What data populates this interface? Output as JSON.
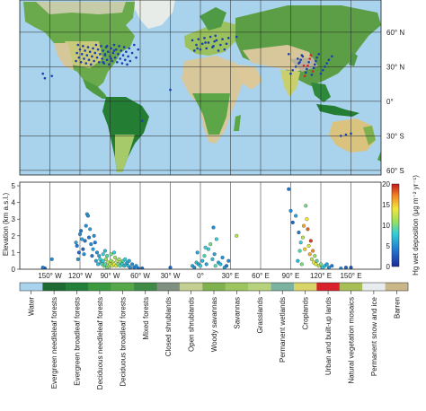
{
  "map": {
    "lat_labels": [
      "60° N",
      "30° N",
      "0°",
      "30° S",
      "60° S"
    ],
    "lat_values": [
      60,
      30,
      0,
      -30,
      -60
    ],
    "colors": {
      "ocean": "#a9d3ec",
      "forest": "#2f8a3a",
      "grass": "#a6c96a",
      "desert": "#d8c79a",
      "snow": "#eeeeee",
      "site": "#1a3fb0"
    }
  },
  "chart_data": {
    "type": "scatter",
    "ylabel": "Elevation (km a.s.l.)",
    "ylim": [
      0,
      5
    ],
    "y_ticks": [
      "0",
      "1",
      "2",
      "3",
      "4",
      "5"
    ],
    "x_ticks": [
      "150° W",
      "120° W",
      "90° W",
      "60° W",
      "30° W",
      "0°",
      "30° E",
      "60° E",
      "90° E",
      "120° E",
      "150° E"
    ],
    "x_tick_values": [
      -150,
      -120,
      -90,
      -60,
      -30,
      0,
      30,
      60,
      90,
      120,
      150
    ],
    "xlim": [
      -180,
      180
    ],
    "colorbar": {
      "label": "Hg wet deposition (μg m⁻² yr⁻¹)",
      "ticks": [
        "0",
        "5",
        "10",
        "15",
        "20"
      ],
      "range": [
        0,
        20
      ]
    },
    "points": [
      [
        -155,
        0.05,
        3
      ],
      [
        -148,
        0.6,
        5
      ],
      [
        -157,
        0.1,
        4
      ],
      [
        -124,
        1.6,
        6
      ],
      [
        -123,
        1.4,
        4
      ],
      [
        -122,
        0.6,
        5
      ],
      [
        -121,
        1.0,
        3
      ],
      [
        -120,
        2.1,
        5
      ],
      [
        -119,
        2.3,
        4
      ],
      [
        -118,
        1.8,
        6
      ],
      [
        -117,
        1.2,
        3
      ],
      [
        -116,
        0.9,
        5
      ],
      [
        -115,
        1.7,
        4
      ],
      [
        -114,
        2.6,
        5
      ],
      [
        -113,
        3.3,
        6
      ],
      [
        -112,
        3.2,
        5
      ],
      [
        -111,
        1.9,
        4
      ],
      [
        -110,
        2.4,
        6
      ],
      [
        -109,
        1.5,
        5
      ],
      [
        -108,
        0.8,
        4
      ],
      [
        -107,
        1.2,
        6
      ],
      [
        -106,
        2.0,
        5
      ],
      [
        -105,
        1.6,
        4
      ],
      [
        -104,
        0.5,
        6
      ],
      [
        -103,
        1.0,
        5
      ],
      [
        -102,
        0.3,
        7
      ],
      [
        -101,
        0.8,
        6
      ],
      [
        -100,
        0.6,
        8
      ],
      [
        -99,
        0.4,
        7
      ],
      [
        -98,
        0.3,
        9
      ],
      [
        -97,
        0.5,
        8
      ],
      [
        -96,
        0.2,
        10
      ],
      [
        -95,
        0.3,
        9
      ],
      [
        -94,
        0.6,
        11
      ],
      [
        -93,
        0.1,
        10
      ],
      [
        -92,
        0.4,
        12
      ],
      [
        -91,
        0.2,
        11
      ],
      [
        -90,
        0.3,
        12
      ],
      [
        -89,
        0.5,
        11
      ],
      [
        -88,
        0.2,
        13
      ],
      [
        -87,
        0.4,
        12
      ],
      [
        -86,
        0.3,
        14
      ],
      [
        -85,
        0.7,
        11
      ],
      [
        -84,
        0.2,
        13
      ],
      [
        -83,
        0.5,
        12
      ],
      [
        -82,
        0.3,
        10
      ],
      [
        -81,
        0.6,
        11
      ],
      [
        -80,
        0.2,
        9
      ],
      [
        -79,
        0.4,
        10
      ],
      [
        -78,
        0.3,
        8
      ],
      [
        -77,
        0.5,
        9
      ],
      [
        -76,
        0.2,
        7
      ],
      [
        -75,
        0.6,
        8
      ],
      [
        -74,
        0.3,
        7
      ],
      [
        -73,
        0.4,
        6
      ],
      [
        -72,
        0.2,
        7
      ],
      [
        -71,
        0.5,
        6
      ],
      [
        -70,
        0.1,
        5
      ],
      [
        -68,
        0.3,
        5
      ],
      [
        -66,
        0.1,
        4
      ],
      [
        -64,
        0.2,
        5
      ],
      [
        -62,
        0.05,
        4
      ],
      [
        -97,
        0.9,
        8
      ],
      [
        -95,
        1.1,
        7
      ],
      [
        -93,
        0.8,
        9
      ],
      [
        -89,
        0.9,
        10
      ],
      [
        -86,
        1.0,
        8
      ],
      [
        -58,
        0.05,
        3
      ],
      [
        -30,
        0.1,
        3
      ],
      [
        -8,
        0.2,
        6
      ],
      [
        -6,
        0.1,
        5
      ],
      [
        -4,
        0.4,
        7
      ],
      [
        -2,
        0.3,
        6
      ],
      [
        0,
        0.2,
        8
      ],
      [
        2,
        0.5,
        7
      ],
      [
        4,
        0.8,
        9
      ],
      [
        6,
        0.3,
        6
      ],
      [
        8,
        1.2,
        8
      ],
      [
        10,
        1.5,
        10
      ],
      [
        12,
        0.6,
        7
      ],
      [
        14,
        0.9,
        6
      ],
      [
        15,
        0.2,
        9
      ],
      [
        13,
        2.5,
        5
      ],
      [
        16,
        1.8,
        8
      ],
      [
        18,
        0.4,
        6
      ],
      [
        20,
        0.3,
        7
      ],
      [
        22,
        0.7,
        5
      ],
      [
        24,
        0.1,
        6
      ],
      [
        26,
        0.2,
        4
      ],
      [
        28,
        0.5,
        5
      ],
      [
        -3,
        1.0,
        6
      ],
      [
        5,
        1.3,
        8
      ],
      [
        36,
        2.0,
        12
      ],
      [
        88,
        4.8,
        4
      ],
      [
        90,
        3.5,
        5
      ],
      [
        92,
        2.8,
        3
      ],
      [
        95,
        3.2,
        6
      ],
      [
        98,
        2.2,
        4
      ],
      [
        100,
        1.6,
        8
      ],
      [
        102,
        1.9,
        12
      ],
      [
        104,
        1.2,
        15
      ],
      [
        105,
        3.8,
        10
      ],
      [
        106,
        3.0,
        14
      ],
      [
        107,
        2.4,
        18
      ],
      [
        108,
        1.4,
        13
      ],
      [
        109,
        0.9,
        16
      ],
      [
        110,
        1.7,
        19
      ],
      [
        111,
        0.6,
        12
      ],
      [
        112,
        1.1,
        17
      ],
      [
        113,
        0.4,
        14
      ],
      [
        114,
        0.8,
        11
      ],
      [
        115,
        0.3,
        13
      ],
      [
        116,
        0.5,
        9
      ],
      [
        118,
        0.2,
        12
      ],
      [
        120,
        0.3,
        10
      ],
      [
        122,
        0.1,
        8
      ],
      [
        124,
        0.2,
        7
      ],
      [
        126,
        0.3,
        6
      ],
      [
        128,
        0.1,
        5
      ],
      [
        131,
        0.2,
        4
      ],
      [
        140,
        0.05,
        5
      ],
      [
        145,
        0.1,
        3
      ],
      [
        150,
        0.1,
        2
      ],
      [
        103,
        2.6,
        16
      ],
      [
        99,
        1.1,
        9
      ],
      [
        97,
        0.5,
        7
      ],
      [
        101,
        0.3,
        10
      ]
    ]
  },
  "legend": {
    "items": [
      {
        "label": "Water",
        "color": "#a9d3ec"
      },
      {
        "label": "Evergreen needleleaf forests",
        "color": "#1d6b33"
      },
      {
        "label": "Evergreen broadleaf forests",
        "color": "#23803a"
      },
      {
        "label": "Deciduous needleleaf forests",
        "color": "#3b9a3f"
      },
      {
        "label": "Deciduous broadleaf forests",
        "color": "#55a84a"
      },
      {
        "label": "Mixed forests",
        "color": "#3e8a46"
      },
      {
        "label": "Closed shrublands",
        "color": "#7f8f80"
      },
      {
        "label": "Open shrublands",
        "color": "#c4cf92"
      },
      {
        "label": "Woody savannas",
        "color": "#7fb24e"
      },
      {
        "label": "Savannas",
        "color": "#9cc55f"
      },
      {
        "label": "Grasslands",
        "color": "#b6d27c"
      },
      {
        "label": "Permanent wetlands",
        "color": "#7bb3a0"
      },
      {
        "label": "Croplands",
        "color": "#d9d468"
      },
      {
        "label": "Urban and built-up lands",
        "color": "#d8212a"
      },
      {
        "label": "Natural vegetation mosaics",
        "color": "#a8bf57"
      },
      {
        "label": "Permanent snow and ice",
        "color": "#e9ecef"
      },
      {
        "label": "Barren",
        "color": "#c9b689"
      }
    ]
  }
}
